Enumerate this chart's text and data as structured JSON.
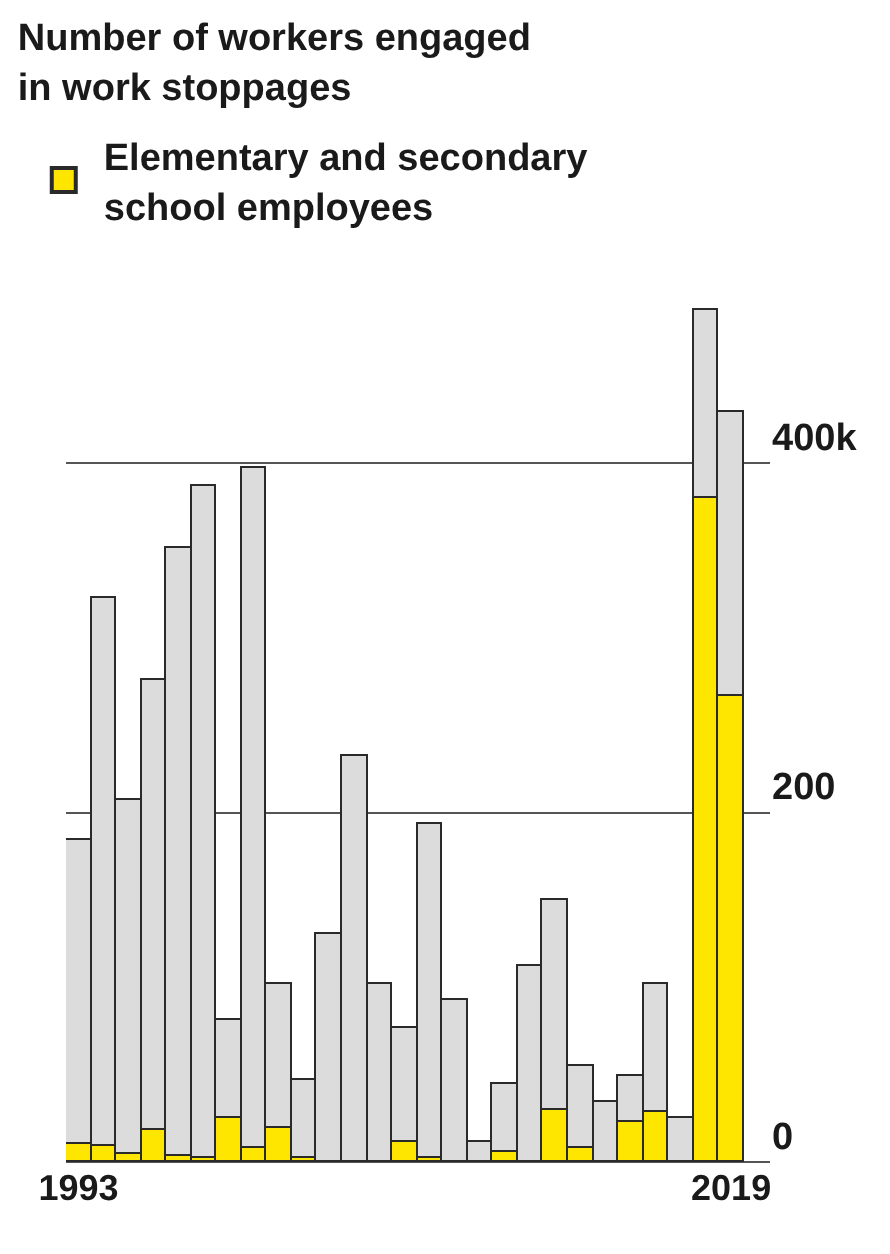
{
  "chart_data": {
    "type": "bar",
    "title": "Number of workers engaged\nin work stoppages",
    "categories": [
      "1993",
      null,
      null,
      null,
      null,
      null,
      null,
      null,
      null,
      null,
      null,
      null,
      null,
      null,
      null,
      null,
      null,
      null,
      null,
      null,
      null,
      null,
      null,
      null,
      null,
      null,
      "2019"
    ],
    "stacked": true,
    "series": [
      {
        "name": "Elementary and secondary\nschool employees",
        "color": "#ffe600",
        "values": [
          10,
          9,
          5,
          18,
          4,
          2,
          25,
          8,
          19,
          2,
          0,
          0,
          0,
          12,
          2,
          0,
          null,
          6,
          null,
          30,
          8,
          0,
          23,
          29,
          0,
          380,
          267
        ]
      },
      {
        "color": "#dcdcdc",
        "values": [
          174,
          314,
          202,
          258,
          347,
          385,
          56,
          389,
          83,
          45,
          130,
          232,
          102,
          65,
          192,
          93,
          12,
          39,
          112,
          120,
          47,
          34,
          26,
          73,
          25,
          108,
          162
        ]
      }
    ],
    "ylim": [
      0,
      490
    ],
    "yticks": [
      0,
      200,
      {
        "value": 400,
        "label": "400k"
      }
    ],
    "grid": "y",
    "legend": "top left"
  }
}
